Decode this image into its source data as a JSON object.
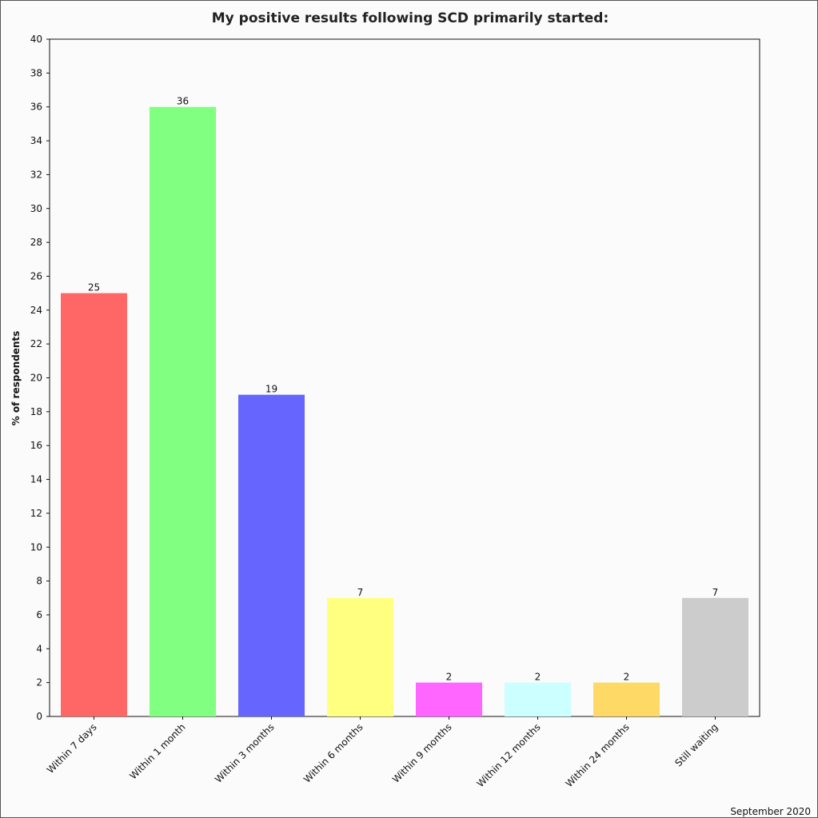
{
  "chart_data": {
    "type": "bar",
    "title": "My positive results following SCD primarily started:",
    "ylabel": "% of respondents",
    "xlabel": "",
    "ylim": [
      0,
      40
    ],
    "yticks": [
      0,
      2,
      4,
      6,
      8,
      10,
      12,
      14,
      16,
      18,
      20,
      22,
      24,
      26,
      28,
      30,
      32,
      34,
      36,
      38,
      40
    ],
    "categories": [
      "Within 7 days",
      "Within 1 month",
      "Within 3 months",
      "Within 6 months",
      "Within 9 months",
      "Within 12 months",
      "Within 24 months",
      "Still waiting"
    ],
    "values": [
      25,
      36,
      19,
      7,
      2,
      2,
      2,
      7
    ],
    "colors": [
      "#ff6666",
      "#80ff80",
      "#6666ff",
      "#ffff80",
      "#ff66ff",
      "#ccffff",
      "#ffd966",
      "#cccccc"
    ],
    "grid": false,
    "footer": "September 2020"
  }
}
